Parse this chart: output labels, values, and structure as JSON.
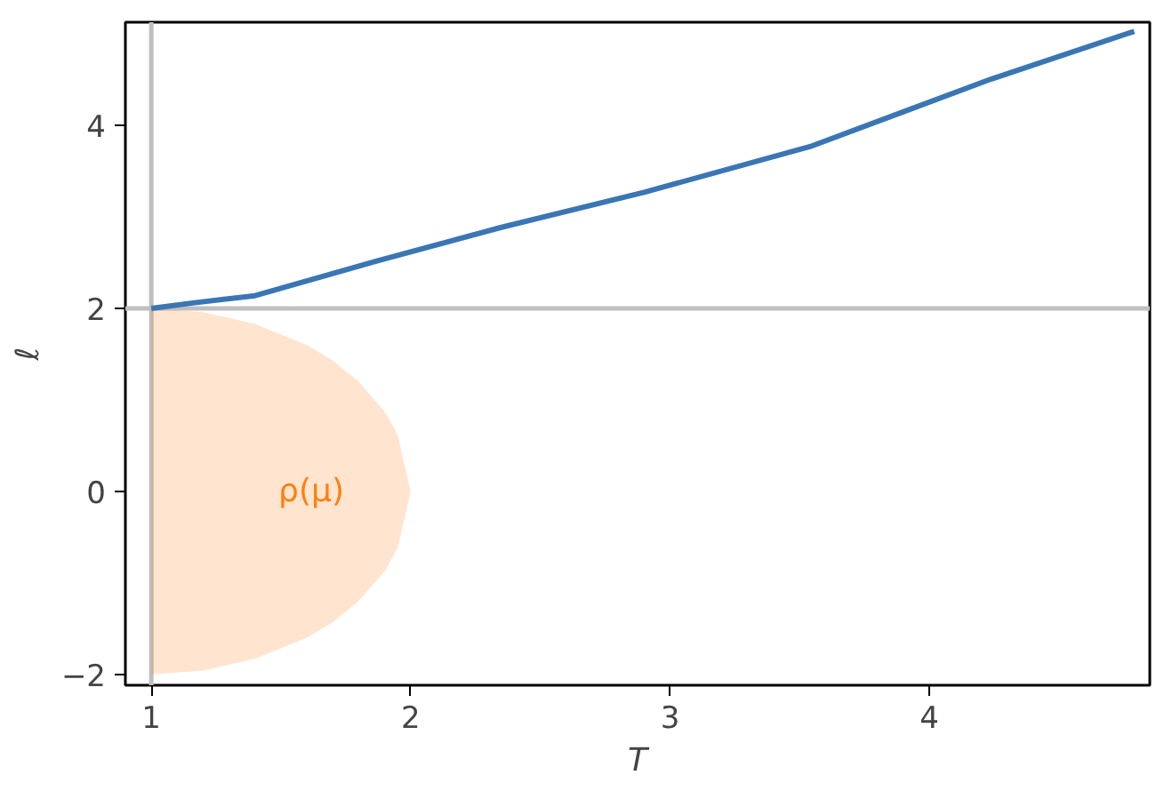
{
  "chart_data": {
    "type": "line",
    "xlabel": "T",
    "ylabel": "ℓ",
    "xlim": [
      0.9,
      4.85
    ],
    "ylim": [
      -2.12,
      5.13
    ],
    "xticks": [
      1,
      2,
      3,
      4
    ],
    "yticks": [
      -2,
      0,
      2,
      4
    ],
    "grid": false,
    "series": [
      {
        "name": "ρ(μ)",
        "type": "area",
        "color": "#ff7f0e",
        "x": [
          1,
          1.2,
          1.4,
          1.6,
          1.7,
          1.8,
          1.9,
          1.95,
          2
        ],
        "values": [
          2,
          1.96,
          1.83,
          1.6,
          1.43,
          1.2,
          0.87,
          0.62,
          0
        ]
      },
      {
        "type": "area",
        "color": "#ff7f0e",
        "x": [
          1,
          1.2,
          1.4,
          1.6,
          1.7,
          1.8,
          1.9,
          1.95,
          2
        ],
        "values": [
          -2,
          -1.96,
          -1.83,
          -1.6,
          -1.43,
          -1.2,
          -0.87,
          -0.62,
          0
        ]
      },
      {
        "color": "#3a76b4",
        "x": [
          1,
          1.16,
          1.4,
          1.87,
          2.34,
          2.9,
          3.54,
          4.24,
          4.79
        ],
        "values": [
          2,
          2.06,
          2.14,
          2.52,
          2.88,
          3.27,
          3.77,
          4.51,
          5.03
        ]
      }
    ],
    "ref_lines": [
      {
        "axis": "x",
        "value": 1,
        "color": "#bfbfbf"
      },
      {
        "axis": "y",
        "value": 2,
        "color": "#bfbfbf"
      }
    ]
  }
}
